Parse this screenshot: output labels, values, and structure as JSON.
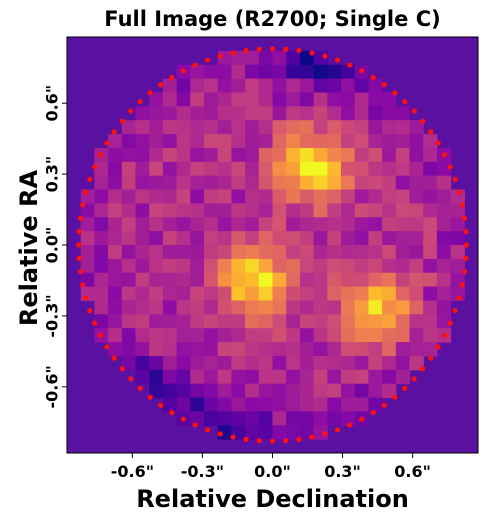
{
  "chart_data": {
    "type": "heatmap",
    "title": "Full Image (R2700; Single C)",
    "xlabel": "Relative Declination",
    "ylabel": "Relative RA",
    "x_ticks": [
      {
        "value": -0.6,
        "label": "-0.6\""
      },
      {
        "value": -0.3,
        "label": "-0.3\""
      },
      {
        "value": 0.0,
        "label": "0.0\""
      },
      {
        "value": 0.3,
        "label": "0.3\""
      },
      {
        "value": 0.6,
        "label": "0.6\""
      }
    ],
    "y_ticks": [
      {
        "value": 0.6,
        "label": "0.6\""
      },
      {
        "value": 0.3,
        "label": "0.3\""
      },
      {
        "value": 0.0,
        "label": "0.0\""
      },
      {
        "value": -0.3,
        "label": "-0.3\""
      },
      {
        "value": -0.6,
        "label": "-0.6\""
      }
    ],
    "xlim": [
      -0.88,
      0.88
    ],
    "ylim": [
      -0.88,
      0.88
    ],
    "colormap": "plasma",
    "background_color": "#5a10a0",
    "aperture_radius": 0.83,
    "aperture_marker_color": "#ff1010",
    "aperture_marker_count": 92,
    "bright_regions": [
      {
        "x": 0.17,
        "y": 0.33,
        "relative_intensity": 1.0
      },
      {
        "x": -0.07,
        "y": -0.16,
        "relative_intensity": 0.97
      },
      {
        "x": 0.45,
        "y": -0.27,
        "relative_intensity": 0.85
      }
    ],
    "dark_regions": [
      {
        "x": -0.5,
        "y": -0.65,
        "relative_intensity": 0.1
      },
      {
        "x": -0.2,
        "y": -0.8,
        "relative_intensity": 0.1
      },
      {
        "x": 0.2,
        "y": 0.8,
        "relative_intensity": 0.2
      }
    ],
    "grid": false,
    "legend": "none"
  }
}
